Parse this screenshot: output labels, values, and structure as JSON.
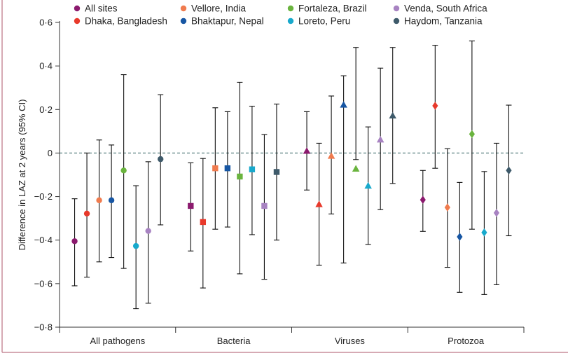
{
  "colors": {
    "frame": "#c98e9c",
    "axis": "#333333",
    "zero_line": "#2f5f5f",
    "whisker": "#111111"
  },
  "chart_data": {
    "type": "scatter",
    "subtype": "point-estimate-with-95ci",
    "title": "",
    "xlabel": "",
    "ylabel": "Difference in LAZ at 2 years (95% CI)",
    "ylim": [
      -0.8,
      0.6
    ],
    "yticks": [
      {
        "value": 0.6,
        "label": "0·6"
      },
      {
        "value": 0.4,
        "label": "0·4"
      },
      {
        "value": 0.2,
        "label": "0·2"
      },
      {
        "value": 0,
        "label": "0"
      },
      {
        "value": -0.2,
        "label": "−0·2"
      },
      {
        "value": -0.4,
        "label": "−0·4"
      },
      {
        "value": -0.6,
        "label": "−0·6"
      },
      {
        "value": -0.8,
        "label": "−0·8"
      }
    ],
    "reference_line": {
      "value": 0,
      "style": "dashed"
    },
    "grid": false,
    "legend_position": "top",
    "categories": [
      "All pathogens",
      "Bacteria",
      "Viruses",
      "Protozoa"
    ],
    "marker_by_category": [
      "circle",
      "square",
      "triangle",
      "diamond"
    ],
    "series": [
      {
        "name": "All sites",
        "color": "#8b1a6e",
        "estimates": [
          -0.405,
          -0.243,
          0.01,
          -0.215
        ],
        "lower": [
          -0.61,
          -0.45,
          -0.17,
          -0.36
        ],
        "upper": [
          -0.21,
          -0.045,
          0.19,
          -0.08
        ]
      },
      {
        "name": "Dhaka, Bangladesh",
        "color": "#e8392b",
        "estimates": [
          -0.278,
          -0.317,
          -0.235,
          0.217
        ],
        "lower": [
          -0.57,
          -0.62,
          -0.515,
          -0.07
        ],
        "upper": [
          0.0,
          -0.025,
          0.045,
          0.495
        ]
      },
      {
        "name": "Vellore, India",
        "color": "#f07b4e",
        "estimates": [
          -0.217,
          -0.07,
          -0.013,
          -0.25
        ],
        "lower": [
          -0.5,
          -0.35,
          -0.28,
          -0.525
        ],
        "upper": [
          0.06,
          0.208,
          0.262,
          0.02
        ]
      },
      {
        "name": "Bhaktapur, Nepal",
        "color": "#1756a3",
        "estimates": [
          -0.217,
          -0.07,
          0.222,
          -0.385
        ],
        "lower": [
          -0.48,
          -0.34,
          -0.505,
          -0.64
        ],
        "upper": [
          0.037,
          0.19,
          0.355,
          -0.135
        ]
      },
      {
        "name": "Fortaleza, Brazil",
        "color": "#6ab43e",
        "estimates": [
          -0.08,
          -0.108,
          -0.072,
          0.087
        ],
        "lower": [
          -0.53,
          -0.555,
          -0.03,
          -0.35
        ],
        "upper": [
          0.36,
          0.325,
          0.485,
          0.515
        ]
      },
      {
        "name": "Loreto, Peru",
        "color": "#18a9cc",
        "estimates": [
          -0.427,
          -0.075,
          -0.15,
          -0.365
        ],
        "lower": [
          -0.715,
          -0.375,
          -0.42,
          -0.65
        ],
        "upper": [
          -0.15,
          0.215,
          0.12,
          -0.085
        ]
      },
      {
        "name": "Venda, South Africa",
        "color": "#a883c2",
        "estimates": [
          -0.358,
          -0.243,
          0.062,
          -0.275
        ],
        "lower": [
          -0.69,
          -0.58,
          -0.26,
          -0.605
        ],
        "upper": [
          -0.04,
          0.085,
          0.39,
          0.045
        ]
      },
      {
        "name": "Haydom, Tanzania",
        "color": "#3e5a6a",
        "estimates": [
          -0.028,
          -0.087,
          0.172,
          -0.08
        ],
        "lower": [
          -0.33,
          -0.4,
          -0.14,
          -0.38
        ],
        "upper": [
          0.268,
          0.225,
          0.485,
          0.22
        ]
      }
    ]
  }
}
